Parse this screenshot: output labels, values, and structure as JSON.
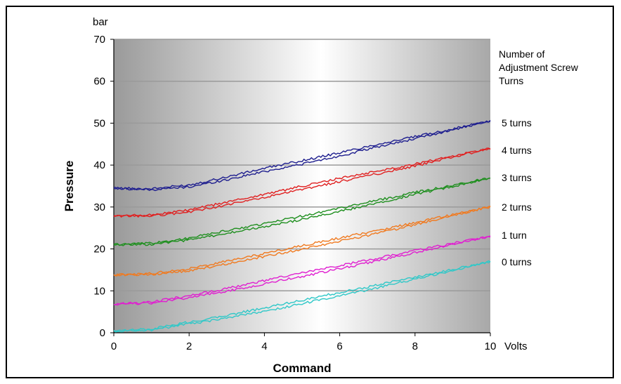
{
  "chart_data": {
    "type": "line",
    "title": "",
    "xlabel": "Command",
    "ylabel": "Pressure",
    "x_unit": "Volts",
    "y_unit": "bar",
    "xlim": [
      0,
      10
    ],
    "ylim": [
      0,
      70
    ],
    "x_ticks": [
      "0",
      "2",
      "4",
      "6",
      "8",
      "10"
    ],
    "y_ticks": [
      "0",
      "10",
      "20",
      "30",
      "40",
      "50",
      "60",
      "70"
    ],
    "grid": true,
    "legend_placement": "right",
    "legend_title": "Number of Adjustment Screw Turns",
    "legend_title_lines": [
      "Number of",
      "Adjustment Screw",
      "Turns"
    ],
    "series": [
      {
        "name": "5 turns",
        "color": "#1f1f8f",
        "x": [
          0,
          1,
          2,
          3,
          4,
          5,
          6,
          7,
          8,
          9,
          10
        ],
        "y": [
          34.5,
          34.2,
          35,
          36.8,
          38.8,
          40.6,
          42.5,
          44.6,
          46.5,
          48.5,
          50.5
        ]
      },
      {
        "name": "4 turns",
        "color": "#e02020",
        "x": [
          0,
          1,
          2,
          3,
          4,
          5,
          6,
          7,
          8,
          9,
          10
        ],
        "y": [
          27.8,
          28,
          29,
          30.8,
          32.6,
          34.5,
          36.4,
          38.2,
          40,
          42,
          44
        ]
      },
      {
        "name": "3 turns",
        "color": "#1f8f1f",
        "x": [
          0,
          1,
          2,
          3,
          4,
          5,
          6,
          7,
          8,
          9,
          10
        ],
        "y": [
          21,
          21.2,
          22.3,
          24,
          25.6,
          27.4,
          29.3,
          31.2,
          33.2,
          35,
          37
        ]
      },
      {
        "name": "2 turns",
        "color": "#f07a20",
        "x": [
          0,
          1,
          2,
          3,
          4,
          5,
          6,
          7,
          8,
          9,
          10
        ],
        "y": [
          13.8,
          14,
          15,
          16.7,
          18.5,
          20.3,
          22.2,
          24,
          26,
          28,
          30
        ]
      },
      {
        "name": "1 turn",
        "color": "#e020d0",
        "x": [
          0,
          1,
          2,
          3,
          4,
          5,
          6,
          7,
          8,
          9,
          10
        ],
        "y": [
          6.8,
          7.2,
          8.6,
          10.2,
          12,
          13.8,
          15.6,
          17.4,
          19.3,
          21.2,
          23
        ]
      },
      {
        "name": "0 turns",
        "color": "#30c8c8",
        "x": [
          0,
          1,
          2,
          3,
          4,
          5,
          6,
          7,
          8,
          9,
          10
        ],
        "y": [
          0.3,
          0.8,
          2.3,
          3.8,
          5.5,
          7.3,
          9.2,
          11,
          13,
          15,
          17
        ]
      }
    ]
  }
}
